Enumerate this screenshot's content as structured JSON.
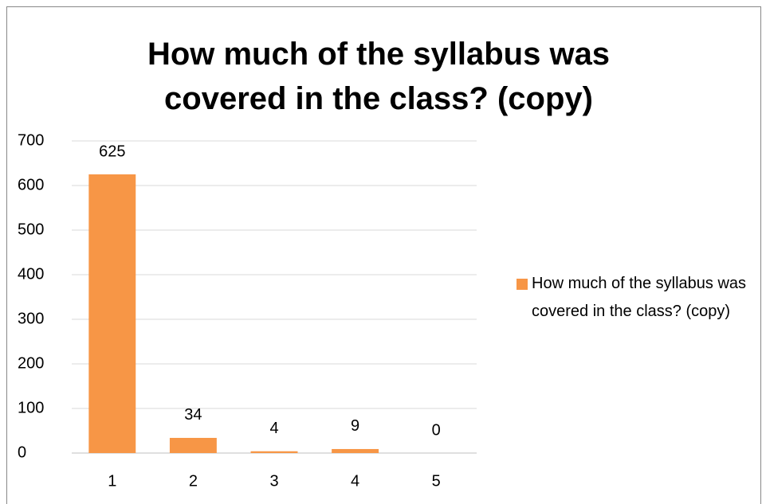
{
  "chart_data": {
    "type": "bar",
    "title": "How much of the syllabus was covered in the class? (copy)",
    "categories": [
      "1",
      "2",
      "3",
      "4",
      "5"
    ],
    "series": [
      {
        "name": "How much of the syllabus was covered in the class? (copy)",
        "color": "#f79646",
        "values": [
          625,
          34,
          4,
          9,
          0
        ]
      }
    ],
    "ylim": [
      0,
      700
    ],
    "yticks": [
      0,
      100,
      200,
      300,
      400,
      500,
      600,
      700
    ],
    "grid": true,
    "legend": "right"
  }
}
